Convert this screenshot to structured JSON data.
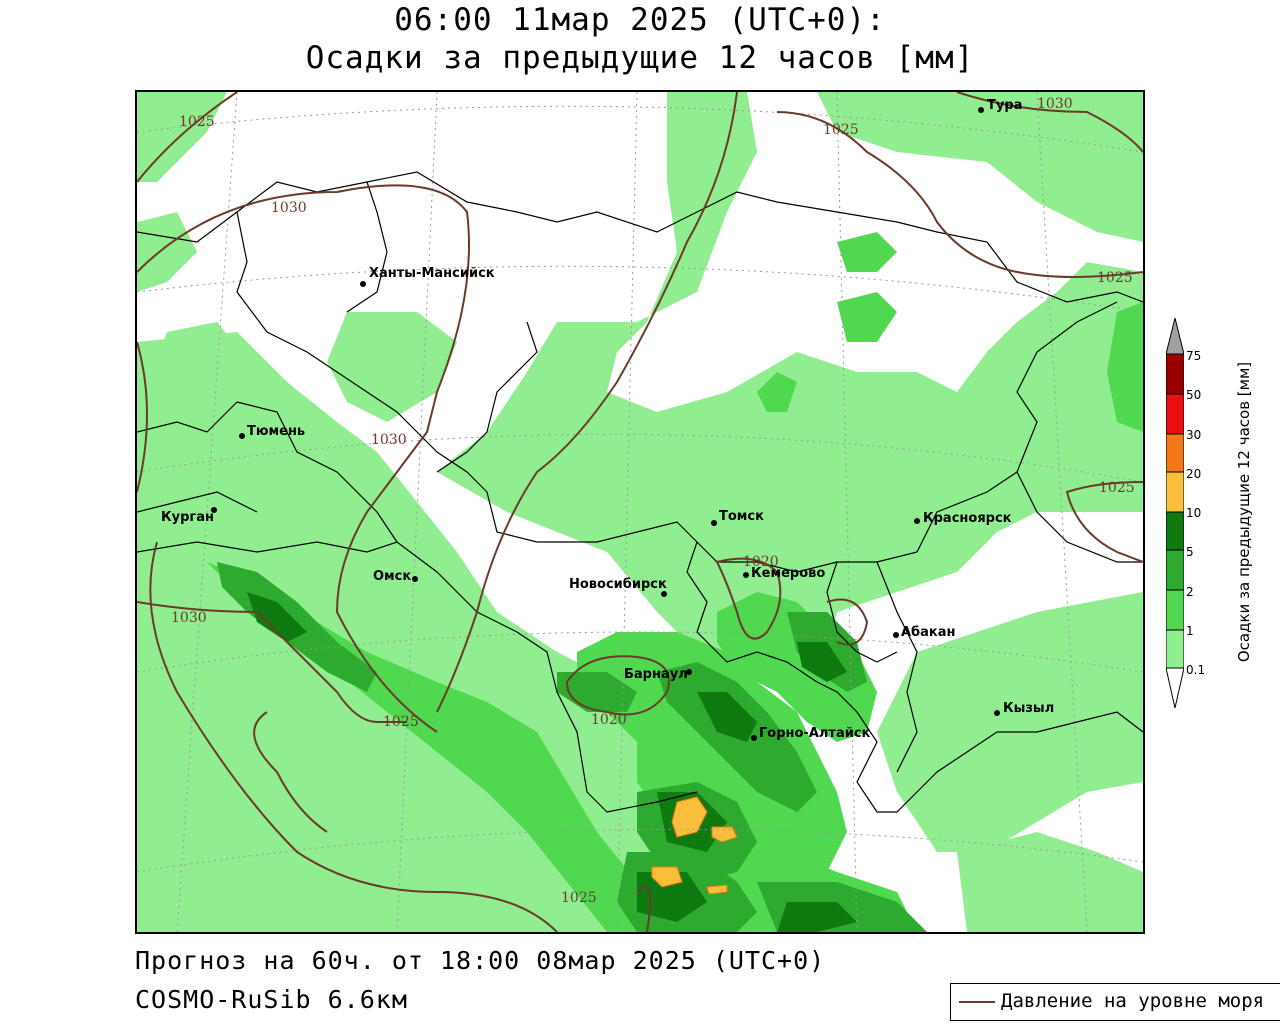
{
  "title": {
    "line1": "06:00 11мар 2025 (UTC+0):",
    "line2": "Осадки за предыдущие 12 часов [мм]"
  },
  "footer": {
    "forecast": "Прогноз на 60ч. от 18:00 08мар 2025 (UTC+0)",
    "model": "COSMO-RuSib 6.6км"
  },
  "pressure_legend": "Давление на уровне моря",
  "colorbar": {
    "title": "Осадки за предыдущие 12 часов [мм]",
    "levels": [
      "0.1",
      "1",
      "2",
      "5",
      "10",
      "20",
      "30",
      "50",
      "75"
    ],
    "colors": {
      "0.1": "#ffffff",
      "1": "#90ee90",
      "2": "#50d850",
      "5": "#2eaa2e",
      "10": "#0f7a0f",
      "20": "#f8bf3a",
      "30": "#f07818",
      "50": "#e81010",
      "75": "#9a0000",
      "over": "#a0a0a0"
    }
  },
  "cities": [
    {
      "name": "Тура"
    },
    {
      "name": "Ханты-Мансийск"
    },
    {
      "name": "Тюмень"
    },
    {
      "name": "Курган"
    },
    {
      "name": "Омск"
    },
    {
      "name": "Новосибирск"
    },
    {
      "name": "Томск"
    },
    {
      "name": "Кемерово"
    },
    {
      "name": "Красноярск"
    },
    {
      "name": "Абакан"
    },
    {
      "name": "Барнаул"
    },
    {
      "name": "Горно-Алтайск"
    },
    {
      "name": "Кызыл"
    }
  ],
  "isobar_labels": [
    "1025",
    "1030",
    "1025",
    "1030",
    "1025",
    "1030",
    "1025",
    "1030",
    "1020",
    "1025",
    "1020",
    "1025"
  ]
}
